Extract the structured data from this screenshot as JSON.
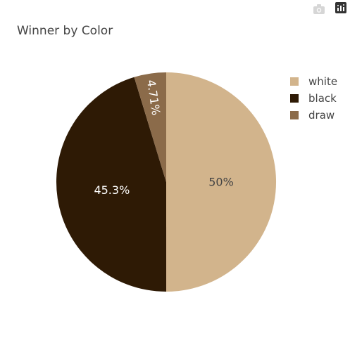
{
  "chart_data": {
    "type": "pie",
    "title": "Winner by Color",
    "categories": [
      "white",
      "black",
      "draw"
    ],
    "values": [
      50.0,
      45.3,
      4.71
    ],
    "labels": [
      "50%",
      "45.3%",
      "4.71%"
    ],
    "colors": [
      "#d2b48c",
      "#2e1a05",
      "#8b6b4a"
    ],
    "label_colors": [
      "#444444",
      "#ffffff",
      "#ffffff"
    ],
    "legend_position": "top-right",
    "direction": "clockwise",
    "start": "top"
  },
  "toolbar": {
    "camera_icon": "camera-icon",
    "plotly_icon": "plotly-logo-icon"
  }
}
